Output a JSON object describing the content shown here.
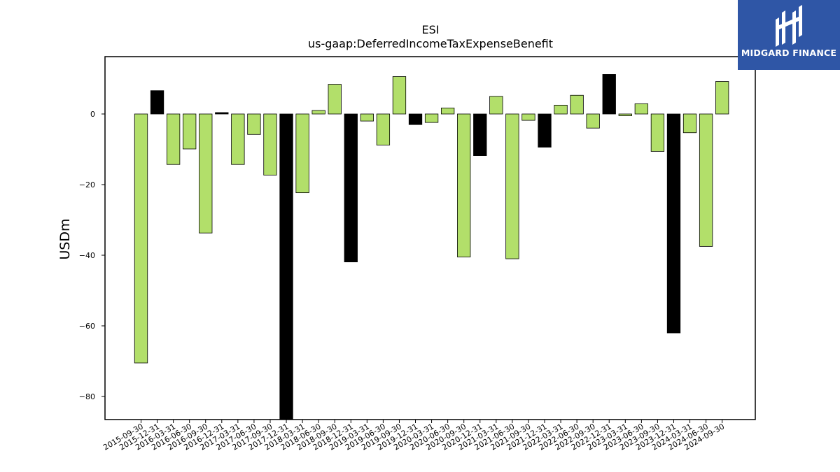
{
  "brand": {
    "name": "MIDGARD FINANCE",
    "bg_color": "#2f56a6",
    "icon": "midgard-logo-icon"
  },
  "chart_data": {
    "type": "bar",
    "title": "ESI",
    "subtitle": "us-gaap:DeferredIncomeTaxExpenseBenefit",
    "xlabel": "",
    "ylabel": "USDm",
    "ylim": [
      -86.5,
      16
    ],
    "yticks": [
      0,
      -20,
      -40,
      -60,
      -80
    ],
    "grid": false,
    "colors": {
      "default": "#b2df6a",
      "highlight": "#000000",
      "edge": "#000000"
    },
    "categories": [
      "2015-09-30",
      "2015-12-31",
      "2016-03-31",
      "2016-06-30",
      "2016-09-30",
      "2016-12-31",
      "2017-03-31",
      "2017-06-30",
      "2017-09-30",
      "2017-12-31",
      "2018-03-31",
      "2018-06-30",
      "2018-09-30",
      "2018-12-31",
      "2019-03-31",
      "2019-06-30",
      "2019-09-30",
      "2019-12-31",
      "2020-03-31",
      "2020-06-30",
      "2020-09-30",
      "2020-12-31",
      "2021-03-31",
      "2021-06-30",
      "2021-09-30",
      "2021-12-31",
      "2022-03-31",
      "2022-06-30",
      "2022-09-30",
      "2022-12-31",
      "2023-03-31",
      "2023-06-30",
      "2023-09-30",
      "2023-12-31",
      "2024-03-31",
      "2024-06-30",
      "2024-09-30"
    ],
    "values": [
      -70.5,
      6.6,
      -14.3,
      -9.9,
      -33.7,
      0.4,
      -14.3,
      -5.8,
      -17.3,
      -86.5,
      -22.3,
      1.0,
      8.4,
      -41.9,
      -2.0,
      -8.8,
      10.6,
      -3.0,
      -2.4,
      1.7,
      -40.5,
      -11.8,
      5.0,
      -41.0,
      -1.8,
      -9.4,
      2.5,
      5.3,
      -4.0,
      11.2,
      -0.5,
      2.9,
      -10.6,
      -62.0,
      -5.3,
      -37.5,
      9.2
    ],
    "highlight": [
      false,
      true,
      false,
      false,
      false,
      true,
      false,
      false,
      false,
      true,
      false,
      false,
      false,
      true,
      false,
      false,
      false,
      true,
      false,
      false,
      false,
      true,
      false,
      false,
      false,
      true,
      false,
      false,
      false,
      true,
      false,
      false,
      false,
      true,
      false,
      false,
      false
    ]
  }
}
